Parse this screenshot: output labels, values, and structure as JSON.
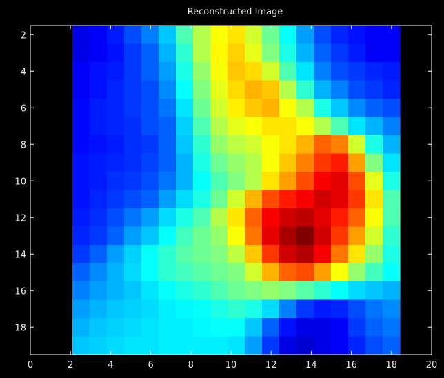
{
  "chart_data": {
    "type": "heatmap",
    "title": "Reconstructed Image",
    "xlabel": "",
    "ylabel": "",
    "colormap": "jet",
    "background": "#000000",
    "xlim": [
      0,
      20
    ],
    "ylim": [
      1.5,
      19.5
    ],
    "x_ticks": [
      0,
      2,
      4,
      6,
      8,
      10,
      12,
      14,
      16,
      18,
      20
    ],
    "y_ticks": [
      2,
      4,
      6,
      8,
      10,
      12,
      14,
      16,
      18
    ],
    "y_reversed": true,
    "x_centers": [
      1,
      2,
      3,
      4,
      5,
      6,
      7,
      8,
      9,
      10,
      11,
      12,
      13,
      14,
      15,
      16,
      17,
      18,
      19
    ],
    "y_centers": [
      2,
      3,
      4,
      5,
      6,
      7,
      8,
      9,
      10,
      11,
      12,
      13,
      14,
      15,
      16,
      17,
      18,
      19
    ],
    "value_range": [
      0,
      1
    ],
    "values": [
      [
        0.1,
        0.12,
        0.15,
        0.2,
        0.25,
        0.32,
        0.45,
        0.55,
        0.62,
        0.65,
        0.58,
        0.48,
        0.38,
        0.28,
        0.2,
        0.16,
        0.14,
        0.12,
        0.12
      ],
      [
        0.1,
        0.12,
        0.14,
        0.18,
        0.22,
        0.3,
        0.42,
        0.55,
        0.63,
        0.67,
        0.6,
        0.5,
        0.4,
        0.3,
        0.22,
        0.18,
        0.15,
        0.12,
        0.12
      ],
      [
        0.12,
        0.14,
        0.15,
        0.18,
        0.22,
        0.28,
        0.4,
        0.52,
        0.62,
        0.68,
        0.66,
        0.58,
        0.45,
        0.35,
        0.25,
        0.2,
        0.18,
        0.16,
        0.15
      ],
      [
        0.12,
        0.14,
        0.16,
        0.18,
        0.2,
        0.26,
        0.38,
        0.5,
        0.6,
        0.66,
        0.7,
        0.68,
        0.55,
        0.42,
        0.3,
        0.25,
        0.2,
        0.18,
        0.16
      ],
      [
        0.13,
        0.15,
        0.16,
        0.18,
        0.2,
        0.24,
        0.35,
        0.48,
        0.58,
        0.64,
        0.68,
        0.7,
        0.62,
        0.55,
        0.4,
        0.32,
        0.26,
        0.22,
        0.2
      ],
      [
        0.13,
        0.15,
        0.16,
        0.17,
        0.2,
        0.22,
        0.33,
        0.45,
        0.55,
        0.6,
        0.62,
        0.65,
        0.65,
        0.62,
        0.55,
        0.45,
        0.35,
        0.3,
        0.25
      ],
      [
        0.13,
        0.14,
        0.15,
        0.17,
        0.18,
        0.22,
        0.32,
        0.42,
        0.52,
        0.56,
        0.58,
        0.62,
        0.65,
        0.7,
        0.78,
        0.75,
        0.58,
        0.4,
        0.3
      ],
      [
        0.14,
        0.15,
        0.16,
        0.17,
        0.19,
        0.22,
        0.3,
        0.4,
        0.48,
        0.52,
        0.55,
        0.62,
        0.68,
        0.75,
        0.82,
        0.85,
        0.72,
        0.5,
        0.35
      ],
      [
        0.14,
        0.15,
        0.17,
        0.18,
        0.2,
        0.24,
        0.3,
        0.38,
        0.45,
        0.5,
        0.55,
        0.65,
        0.72,
        0.8,
        0.88,
        0.9,
        0.8,
        0.6,
        0.4
      ],
      [
        0.14,
        0.16,
        0.18,
        0.2,
        0.22,
        0.28,
        0.34,
        0.4,
        0.48,
        0.58,
        0.7,
        0.8,
        0.85,
        0.88,
        0.92,
        0.9,
        0.82,
        0.65,
        0.45
      ],
      [
        0.15,
        0.17,
        0.2,
        0.24,
        0.28,
        0.34,
        0.4,
        0.45,
        0.55,
        0.65,
        0.78,
        0.88,
        0.92,
        0.94,
        0.9,
        0.85,
        0.78,
        0.62,
        0.45
      ],
      [
        0.16,
        0.18,
        0.22,
        0.28,
        0.32,
        0.38,
        0.44,
        0.48,
        0.52,
        0.62,
        0.76,
        0.9,
        0.96,
        1.0,
        0.92,
        0.82,
        0.72,
        0.58,
        0.42
      ],
      [
        0.18,
        0.22,
        0.28,
        0.33,
        0.38,
        0.42,
        0.46,
        0.48,
        0.5,
        0.56,
        0.68,
        0.82,
        0.92,
        0.95,
        0.88,
        0.76,
        0.65,
        0.52,
        0.4
      ],
      [
        0.22,
        0.26,
        0.3,
        0.34,
        0.38,
        0.42,
        0.44,
        0.46,
        0.48,
        0.5,
        0.58,
        0.7,
        0.78,
        0.8,
        0.72,
        0.62,
        0.52,
        0.44,
        0.38
      ],
      [
        0.25,
        0.28,
        0.3,
        0.32,
        0.35,
        0.38,
        0.4,
        0.42,
        0.45,
        0.48,
        0.5,
        0.52,
        0.5,
        0.46,
        0.42,
        0.38,
        0.34,
        0.32,
        0.3
      ],
      [
        0.28,
        0.3,
        0.32,
        0.33,
        0.34,
        0.36,
        0.37,
        0.38,
        0.4,
        0.42,
        0.4,
        0.34,
        0.25,
        0.18,
        0.15,
        0.16,
        0.2,
        0.24,
        0.26
      ],
      [
        0.3,
        0.32,
        0.33,
        0.34,
        0.35,
        0.36,
        0.36,
        0.37,
        0.38,
        0.38,
        0.32,
        0.22,
        0.14,
        0.1,
        0.1,
        0.12,
        0.18,
        0.22,
        0.24
      ],
      [
        0.32,
        0.33,
        0.34,
        0.35,
        0.35,
        0.36,
        0.36,
        0.36,
        0.36,
        0.35,
        0.28,
        0.18,
        0.1,
        0.08,
        0.1,
        0.12,
        0.16,
        0.2,
        0.22
      ]
    ]
  }
}
